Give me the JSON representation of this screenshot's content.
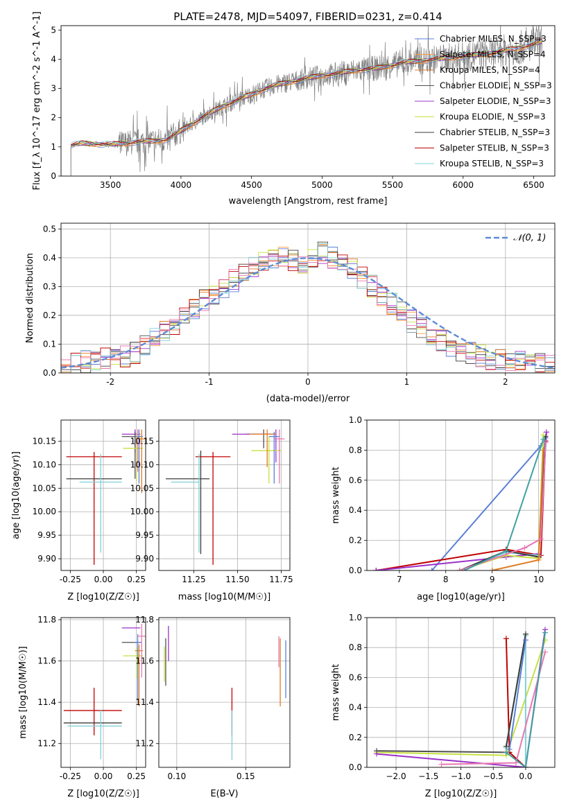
{
  "figure": {
    "title": "PLATE=2478, MJD=54097, FIBERID=0231, z=0.414"
  },
  "colors": {
    "chabrier_miles": "#5a7fd6",
    "salpeter_miles": "#ff9a3a",
    "kroupa_miles": "#e07a20",
    "chabrier_elodie": "#4f4f4f",
    "salpeter_elodie": "#9b30c8",
    "kroupa_elodie": "#c8e040",
    "chabrier_stelib": "#3a3a3a",
    "salpeter_stelib": "#c00000",
    "kroupa_stelib": "#80d0d8",
    "pink": "#e878b0",
    "teal": "#40a0a0",
    "gray_data": "#808080",
    "normal_curve": "#5b8bd6",
    "grid": "#b0b0b0"
  },
  "chart_data": [
    {
      "id": "spectrum",
      "type": "line",
      "title": "PLATE=2478, MJD=54097, FIBERID=0231, z=0.414",
      "xlabel": "wavelength [Angstrom, rest frame]",
      "ylabel": "Flux [f_λ 10^-17 erg cm^-2 s^-1 A^-1]",
      "xlim": [
        3150,
        6650
      ],
      "ylim": [
        0,
        5.15
      ],
      "xticks": [
        3500,
        4000,
        4500,
        5000,
        5500,
        6000,
        6500
      ],
      "yticks": [
        0,
        1,
        2,
        3,
        4,
        5
      ],
      "grid": false,
      "legend_position": "top-right",
      "continuum": {
        "x": [
          3220,
          3300,
          3400,
          3500,
          3600,
          3700,
          3800,
          3900,
          4000,
          4100,
          4200,
          4300,
          4400,
          4500,
          4600,
          4700,
          4800,
          4900,
          5000,
          5100,
          5200,
          5300,
          5400,
          5500,
          5600,
          5700,
          5800,
          5900,
          6000,
          6100,
          6200,
          6300,
          6400,
          6500,
          6550
        ],
        "y": [
          1.05,
          1.12,
          1.1,
          1.08,
          1.12,
          1.18,
          1.2,
          1.25,
          1.55,
          1.85,
          2.15,
          2.4,
          2.6,
          2.8,
          3.0,
          3.15,
          3.25,
          3.35,
          3.45,
          3.5,
          3.6,
          3.65,
          3.7,
          3.8,
          3.9,
          3.95,
          4.0,
          4.05,
          4.1,
          4.15,
          4.2,
          4.3,
          4.4,
          4.5,
          4.6
        ]
      },
      "series": [
        {
          "name": "Chabrier MILES, N_SSP=3",
          "color": "chabrier_miles"
        },
        {
          "name": "Salpeter MILES, N_SSP=4",
          "color": "salpeter_miles"
        },
        {
          "name": "Kroupa MILES, N_SSP=4",
          "color": "kroupa_miles"
        },
        {
          "name": "Chabrier ELODIE, N_SSP=3",
          "color": "chabrier_elodie"
        },
        {
          "name": "Salpeter ELODIE, N_SSP=3",
          "color": "salpeter_elodie"
        },
        {
          "name": "Kroupa ELODIE, N_SSP=3",
          "color": "kroupa_elodie"
        },
        {
          "name": "Chabrier STELIB, N_SSP=3",
          "color": "chabrier_stelib"
        },
        {
          "name": "Salpeter STELIB, N_SSP=3",
          "color": "salpeter_stelib"
        },
        {
          "name": "Kroupa STELIB, N_SSP=3",
          "color": "kroupa_stelib"
        }
      ]
    },
    {
      "id": "residuals",
      "type": "line",
      "xlabel": "(data-model)/error",
      "ylabel": "Normed distribution",
      "xlim": [
        -2.5,
        2.5
      ],
      "ylim": [
        0,
        0.52
      ],
      "xticks": [
        -2,
        -1,
        0,
        1,
        2
      ],
      "yticks": [
        0.0,
        0.1,
        0.2,
        0.3,
        0.4,
        0.5
      ],
      "grid": true,
      "legend_position": "top-right",
      "legend": "𝒩(0, 1)",
      "bin_width": 0.1,
      "hist_values": [
        0.02,
        0.03,
        0.04,
        0.04,
        0.05,
        0.05,
        0.06,
        0.07,
        0.1,
        0.12,
        0.15,
        0.17,
        0.2,
        0.22,
        0.25,
        0.27,
        0.3,
        0.32,
        0.35,
        0.37,
        0.39,
        0.4,
        0.41,
        0.39,
        0.38,
        0.4,
        0.42,
        0.4,
        0.39,
        0.36,
        0.33,
        0.3,
        0.27,
        0.24,
        0.21,
        0.18,
        0.16,
        0.13,
        0.11,
        0.09,
        0.08,
        0.07,
        0.06,
        0.05,
        0.045,
        0.04,
        0.035,
        0.03,
        0.03,
        0.025
      ]
    },
    {
      "id": "age_vs_Z",
      "type": "scatter",
      "xlabel": "Z [log10(Z/Z☉)]",
      "ylabel": "age  [log10(age/yr)]",
      "xlim": [
        -0.32,
        0.32
      ],
      "ylim": [
        9.875,
        10.195
      ],
      "xticks": [
        "-0.25",
        "0.00",
        "0.25"
      ],
      "yticks": [
        "9.90",
        "9.95",
        "10.00",
        "10.05",
        "10.10",
        "10.15"
      ],
      "grid": true,
      "points": [
        {
          "x": -0.07,
          "y": 10.117,
          "xerr": [
            0.21,
            0.21
          ],
          "yerr": [
            0.23,
            0.01
          ],
          "color": "salpeter_stelib"
        },
        {
          "x": -0.07,
          "y": 10.07,
          "xerr": [
            0.21,
            0.21
          ],
          "yerr": [
            0.0,
            0.0
          ],
          "color": "chabrier_stelib"
        },
        {
          "x": -0.02,
          "y": 10.063,
          "xerr": [
            0.16,
            0.16
          ],
          "yerr": [
            0.15,
            0.06
          ],
          "color": "kroupa_stelib"
        },
        {
          "x": 0.24,
          "y": 10.165,
          "xerr": [
            0.1,
            0.04
          ],
          "yerr": [
            0.04,
            0.01
          ],
          "color": "salpeter_elodie"
        },
        {
          "x": 0.24,
          "y": 10.16,
          "xerr": [
            0.1,
            0.04
          ],
          "yerr": [
            0.09,
            0.01
          ],
          "color": "chabrier_elodie"
        },
        {
          "x": 0.25,
          "y": 10.135,
          "xerr": [
            0.1,
            0.05
          ],
          "yerr": [
            0.07,
            0.03
          ],
          "color": "kroupa_elodie"
        },
        {
          "x": 0.27,
          "y": 10.16,
          "xerr": [
            0.03,
            0.03
          ],
          "yerr": [
            0.1,
            0.015
          ],
          "color": "chabrier_miles"
        },
        {
          "x": 0.29,
          "y": 10.155,
          "xerr": [
            0.03,
            0.03
          ],
          "yerr": [
            0.115,
            0.02
          ],
          "color": "kroupa_miles"
        },
        {
          "x": 0.26,
          "y": 10.145,
          "xerr": [
            0.02,
            0.03
          ],
          "yerr": [
            0.06,
            0.03
          ],
          "color": "pink"
        }
      ]
    },
    {
      "id": "age_vs_mass",
      "type": "scatter",
      "xlabel": "mass [log10(M/M☉)]",
      "ylabel": "",
      "xlim": [
        11.05,
        11.8
      ],
      "ylim": [
        9.875,
        10.195
      ],
      "xticks": [
        "11.25",
        "11.50",
        "11.75"
      ],
      "yticks": [
        "9.90",
        "9.95",
        "10.00",
        "10.05",
        "10.10",
        "10.15"
      ],
      "grid": true,
      "points": [
        {
          "x": 11.29,
          "y": 10.07,
          "xerr": [
            0.2,
            0.05
          ],
          "yerr": [
            0.16,
            0.06
          ],
          "color": "chabrier_stelib"
        },
        {
          "x": 11.36,
          "y": 10.117,
          "xerr": [
            0.1,
            0.1
          ],
          "yerr": [
            0.23,
            0.01
          ],
          "color": "salpeter_stelib"
        },
        {
          "x": 11.28,
          "y": 10.063,
          "xerr": [
            0.16,
            0.0
          ],
          "yerr": [
            0.15,
            0.06
          ],
          "color": "kroupa_stelib"
        },
        {
          "x": 11.65,
          "y": 10.165,
          "xerr": [
            0.1,
            0.07
          ],
          "yerr": [
            0.03,
            0.01
          ],
          "color": "chabrier_elodie"
        },
        {
          "x": 11.72,
          "y": 10.165,
          "xerr": [
            0.25,
            0.0
          ],
          "yerr": [
            0.06,
            0.01
          ],
          "color": "salpeter_elodie"
        },
        {
          "x": 11.68,
          "y": 10.13,
          "xerr": [
            0.1,
            0.07
          ],
          "yerr": [
            0.07,
            0.03
          ],
          "color": "kroupa_elodie"
        },
        {
          "x": 11.67,
          "y": 10.165,
          "xerr": [
            0.1,
            0.05
          ],
          "yerr": [
            0.07,
            0.01
          ],
          "color": "kroupa_miles"
        },
        {
          "x": 11.74,
          "y": 10.155,
          "xerr": [
            0.03,
            0.03
          ],
          "yerr": [
            0.095,
            0.02
          ],
          "color": "pink"
        },
        {
          "x": 11.71,
          "y": 10.16,
          "xerr": [
            0.03,
            0.03
          ],
          "yerr": [
            0.1,
            0.01
          ],
          "color": "chabrier_miles"
        }
      ]
    },
    {
      "id": "weight_vs_age",
      "type": "line",
      "xlabel": "age  [log10(age/yr)]",
      "ylabel": "mass weight",
      "xlim": [
        6.3,
        10.35
      ],
      "ylim": [
        0,
        1.0
      ],
      "xticks": [
        7,
        8,
        9,
        10
      ],
      "yticks": [
        0.0,
        0.2,
        0.4,
        0.6,
        0.8,
        1.0
      ],
      "grid": true,
      "series": [
        {
          "color": "chabrier_miles",
          "x": [
            7.7,
            10.05,
            10.15
          ],
          "y": [
            0.0,
            0.83,
            0.88
          ]
        },
        {
          "color": "salpeter_stelib",
          "x": [
            6.5,
            9.3,
            10.05,
            10.15
          ],
          "y": [
            0.0,
            0.14,
            0.1,
            0.86
          ]
        },
        {
          "color": "salpeter_elodie",
          "x": [
            6.5,
            9.3,
            10.0,
            10.17
          ],
          "y": [
            0.0,
            0.09,
            0.11,
            0.92
          ]
        },
        {
          "color": "kroupa_stelib",
          "x": [
            8.3,
            9.3,
            10.0,
            10.12
          ],
          "y": [
            0.0,
            0.12,
            0.1,
            0.88
          ]
        },
        {
          "color": "chabrier_stelib",
          "x": [
            8.3,
            9.3,
            10.0,
            10.15
          ],
          "y": [
            0.0,
            0.13,
            0.09,
            0.89
          ]
        },
        {
          "color": "kroupa_elodie",
          "x": [
            8.3,
            9.3,
            10.0,
            10.1
          ],
          "y": [
            0.0,
            0.1,
            0.08,
            0.9
          ]
        },
        {
          "color": "kroupa_miles",
          "x": [
            9.0,
            10.0,
            10.1
          ],
          "y": [
            0.0,
            0.07,
            0.8
          ]
        },
        {
          "color": "pink",
          "x": [
            8.3,
            9.7,
            10.05,
            10.15
          ],
          "y": [
            0.0,
            0.15,
            0.21,
            0.85
          ]
        },
        {
          "color": "teal",
          "x": [
            8.4,
            9.3,
            10.1
          ],
          "y": [
            0.0,
            0.13,
            0.87
          ]
        }
      ]
    },
    {
      "id": "mass_vs_Z",
      "type": "scatter",
      "xlabel": "Z [log10(Z/Z☉)]",
      "ylabel": "mass [log10(M/M☉)]",
      "xlim": [
        -0.32,
        0.32
      ],
      "ylim": [
        11.085,
        11.81
      ],
      "xticks": [
        "-0.25",
        "0.00",
        "0.25"
      ],
      "yticks": [
        "11.2",
        "11.4",
        "11.6",
        "11.8"
      ],
      "grid": true,
      "points": [
        {
          "x": -0.07,
          "y": 11.36,
          "xerr": [
            0.23,
            0.21
          ],
          "yerr": [
            0.12,
            0.11
          ],
          "color": "salpeter_stelib"
        },
        {
          "x": -0.07,
          "y": 11.3,
          "xerr": [
            0.23,
            0.21
          ],
          "yerr": [
            0.0,
            0.0
          ],
          "color": "chabrier_stelib"
        },
        {
          "x": -0.02,
          "y": 11.285,
          "xerr": [
            0.25,
            0.16
          ],
          "yerr": [
            0.16,
            0.08
          ],
          "color": "kroupa_stelib"
        },
        {
          "x": 0.24,
          "y": 11.76,
          "xerr": [
            0.1,
            0.04
          ],
          "yerr": [
            0.0,
            0.0
          ],
          "color": "salpeter_elodie"
        },
        {
          "x": 0.24,
          "y": 11.69,
          "xerr": [
            0.1,
            0.04
          ],
          "yerr": [
            0.0,
            0.0
          ],
          "color": "chabrier_elodie"
        },
        {
          "x": 0.25,
          "y": 11.625,
          "xerr": [
            0.1,
            0.05
          ],
          "yerr": [
            0.11,
            0.04
          ],
          "color": "kroupa_elodie"
        },
        {
          "x": 0.27,
          "y": 11.65,
          "xerr": [
            0.03,
            0.03
          ],
          "yerr": [
            0.27,
            0.03
          ],
          "color": "kroupa_miles"
        },
        {
          "x": 0.26,
          "y": 11.69,
          "xerr": [
            0.02,
            0.03
          ],
          "yerr": [
            0.28,
            0.04
          ],
          "color": "chabrier_miles"
        },
        {
          "x": 0.29,
          "y": 11.72,
          "xerr": [
            0.03,
            0.03
          ],
          "yerr": [
            0.2,
            0.06
          ],
          "color": "pink"
        }
      ]
    },
    {
      "id": "mass_vs_ebv",
      "type": "scatter",
      "xlabel": "E(B-V)",
      "ylabel": "",
      "xlim": [
        0.087,
        0.182
      ],
      "ylim": [
        11.085,
        11.81
      ],
      "xticks": [
        "0.10",
        "0.15"
      ],
      "yticks": [
        "11.2",
        "11.4",
        "11.6",
        "11.8"
      ],
      "grid": true,
      "points": [
        {
          "x": 0.092,
          "y": 11.66,
          "yerr": [
            0.18,
            0.05
          ],
          "color": "chabrier_elodie"
        },
        {
          "x": 0.091,
          "y": 11.62,
          "yerr": [
            0.12,
            0.05
          ],
          "color": "kroupa_elodie"
        },
        {
          "x": 0.094,
          "y": 11.7,
          "yerr": [
            0.1,
            0.07
          ],
          "color": "salpeter_elodie"
        },
        {
          "x": 0.14,
          "y": 11.36,
          "yerr": [
            0.12,
            0.11
          ],
          "color": "salpeter_stelib"
        },
        {
          "x": 0.14,
          "y": 11.3,
          "yerr": [
            0.18,
            0.06
          ],
          "color": "kroupa_stelib"
        },
        {
          "x": 0.175,
          "y": 11.65,
          "yerr": [
            0.27,
            0.06
          ],
          "color": "kroupa_miles"
        },
        {
          "x": 0.174,
          "y": 11.68,
          "yerr": [
            0.11,
            0.04
          ],
          "color": "pink"
        },
        {
          "x": 0.179,
          "y": 11.6,
          "yerr": [
            0.18,
            0.1
          ],
          "color": "chabrier_miles"
        }
      ]
    },
    {
      "id": "weight_vs_Z",
      "type": "line",
      "xlabel": "Z [log10(Z/Z☉)]",
      "ylabel": "mass weight",
      "xlim": [
        -2.45,
        0.45
      ],
      "ylim": [
        0,
        1.0
      ],
      "xticks": [
        "−2.0",
        "−1.5",
        "−1.0",
        "−0.5",
        "0.0"
      ],
      "yticks": [
        0.0,
        0.2,
        0.4,
        0.6,
        0.8,
        1.0
      ],
      "grid": true,
      "series": [
        {
          "color": "kroupa_elodie",
          "x": [
            -2.3,
            -0.3,
            0.3
          ],
          "y": [
            0.1,
            0.08,
            0.85
          ]
        },
        {
          "color": "chabrier_elodie",
          "x": [
            -2.3,
            -0.3
          ],
          "y": [
            0.11,
            0.1
          ]
        },
        {
          "color": "salpeter_elodie",
          "x": [
            -2.3,
            0.0,
            0.3
          ],
          "y": [
            0.09,
            0.0,
            0.92
          ]
        },
        {
          "color": "salpeter_stelib",
          "x": [
            -0.3,
            -0.25,
            0.0
          ],
          "y": [
            0.86,
            0.1,
            0.0
          ]
        },
        {
          "color": "kroupa_stelib",
          "x": [
            -0.3,
            0.0,
            0.0
          ],
          "y": [
            0.13,
            0.88,
            0.0
          ]
        },
        {
          "color": "chabrier_stelib",
          "x": [
            -0.3,
            0.0
          ],
          "y": [
            0.14,
            0.89
          ]
        },
        {
          "color": "pink",
          "x": [
            -1.3,
            -0.15,
            0.3
          ],
          "y": [
            0.02,
            0.03,
            0.77
          ]
        },
        {
          "color": "teal",
          "x": [
            -0.3,
            0.0,
            0.3
          ],
          "y": [
            0.1,
            0.0,
            0.9
          ]
        },
        {
          "color": "chabrier_miles",
          "x": [
            -0.25,
            0.0
          ],
          "y": [
            0.12,
            0.85
          ]
        }
      ]
    }
  ]
}
